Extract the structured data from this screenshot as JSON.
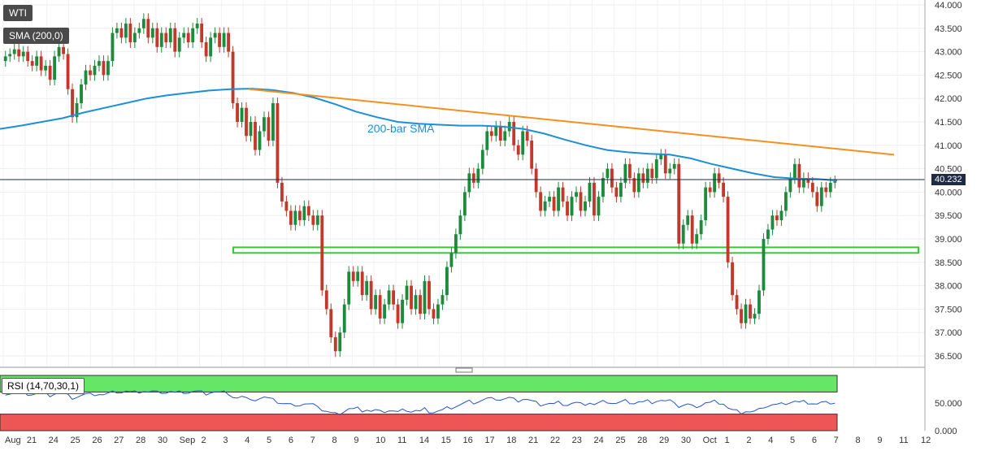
{
  "symbol": "WTI",
  "indicators": {
    "sma_label": "SMA (200,0)",
    "rsi_label": "RSI (14,70,30,1)"
  },
  "annotations": {
    "sma_text": "200-bar SMA"
  },
  "last_price": "40.232",
  "colors": {
    "up": "#1e8a3c",
    "down": "#c0392b",
    "sma": "#1e8fd6",
    "trendline": "#f5901e",
    "support_box": "#33cc33",
    "rsi_line": "#2255cc",
    "rsi_overbought": "#66e666",
    "rsi_oversold": "#ee5555"
  },
  "chart_data": {
    "type": "candlestick",
    "ylim": [
      36.3,
      44.0
    ],
    "y_ticks": [
      "44.000",
      "43.500",
      "43.000",
      "42.500",
      "42.000",
      "41.500",
      "41.000",
      "40.500",
      "40.000",
      "39.500",
      "39.000",
      "38.500",
      "38.000",
      "37.500",
      "37.000",
      "36.500"
    ],
    "x_ticks": [
      "Aug",
      "21",
      "24",
      "25",
      "26",
      "27",
      "28",
      "30",
      "Sep",
      "2",
      "3",
      "4",
      "5",
      "6",
      "7",
      "8",
      "9",
      "10",
      "11",
      "14",
      "15",
      "16",
      "17",
      "18",
      "21",
      "22",
      "23",
      "24",
      "25",
      "28",
      "29",
      "30",
      "Oct",
      "1",
      "2",
      "4",
      "5",
      "6",
      "7",
      "8",
      "9",
      "11",
      "12"
    ],
    "ohlc_closes": [
      42.9,
      42.95,
      43.05,
      42.9,
      43.0,
      42.8,
      42.7,
      42.9,
      42.6,
      42.7,
      42.4,
      42.9,
      43.1,
      42.95,
      42.2,
      41.6,
      41.9,
      42.3,
      42.6,
      42.5,
      42.7,
      42.8,
      42.5,
      42.8,
      43.4,
      43.5,
      43.3,
      43.6,
      43.2,
      43.4,
      43.5,
      43.7,
      43.3,
      43.5,
      43.1,
      43.4,
      43.2,
      43.5,
      43.0,
      43.3,
      43.4,
      43.2,
      43.5,
      43.6,
      43.2,
      42.9,
      43.3,
      43.4,
      43.1,
      43.4,
      43.0,
      41.9,
      41.5,
      41.8,
      41.2,
      41.5,
      40.9,
      41.3,
      41.6,
      41.1,
      41.9,
      40.2,
      39.8,
      39.6,
      39.3,
      39.6,
      39.4,
      39.7,
      39.5,
      39.3,
      39.5,
      37.9,
      37.5,
      36.9,
      36.6,
      37.0,
      37.6,
      38.3,
      38.1,
      38.3,
      37.8,
      38.1,
      37.5,
      37.8,
      37.3,
      37.6,
      37.9,
      37.6,
      37.2,
      37.7,
      38.0,
      37.5,
      37.8,
      37.4,
      38.1,
      37.5,
      37.3,
      37.6,
      37.8,
      38.4,
      38.7,
      39.1,
      39.5,
      40.0,
      40.4,
      40.2,
      40.5,
      40.9,
      41.3,
      41.2,
      41.4,
      41.1,
      41.3,
      41.5,
      41.0,
      40.8,
      41.3,
      41.1,
      40.5,
      40.0,
      39.6,
      39.8,
      39.9,
      39.6,
      40.1,
      39.8,
      39.5,
      39.9,
      40.0,
      39.6,
      39.8,
      40.2,
      39.5,
      39.9,
      40.3,
      40.5,
      40.1,
      39.9,
      40.2,
      40.6,
      40.3,
      40.0,
      40.4,
      40.2,
      40.5,
      40.3,
      40.7,
      40.8,
      40.4,
      40.5,
      40.6,
      38.9,
      39.3,
      39.5,
      38.9,
      39.1,
      39.4,
      40.1,
      40.0,
      40.4,
      40.2,
      39.9,
      38.5,
      37.8,
      37.5,
      37.2,
      37.6,
      37.3,
      37.4,
      37.9,
      39.0,
      39.2,
      39.5,
      39.4,
      39.6,
      40.0,
      40.3,
      40.6,
      40.1,
      40.3,
      40.2,
      40.0,
      39.7,
      40.1,
      40.0,
      40.2,
      40.232
    ],
    "sma_200": [
      41.35,
      41.42,
      41.5,
      41.58,
      41.7,
      41.8,
      41.9,
      42.0,
      42.07,
      42.12,
      42.17,
      42.2,
      42.21,
      42.18,
      42.12,
      42.02,
      41.88,
      41.72,
      41.6,
      41.5,
      41.46,
      41.44,
      41.42,
      41.42,
      41.4,
      41.35,
      41.25,
      41.12,
      41.0,
      40.9,
      40.85,
      40.82,
      40.8,
      40.72,
      40.6,
      40.5,
      40.4,
      40.32,
      40.29,
      40.28,
      40.25
    ],
    "resistance_line": {
      "from": 42.2,
      "to": 40.8
    },
    "support_zone": [
      38.7,
      38.82
    ],
    "rsi": {
      "ylim": [
        0,
        100
      ],
      "y_ticks": [
        "50.000",
        "0.000"
      ],
      "overbought": 70,
      "oversold": 30
    }
  }
}
